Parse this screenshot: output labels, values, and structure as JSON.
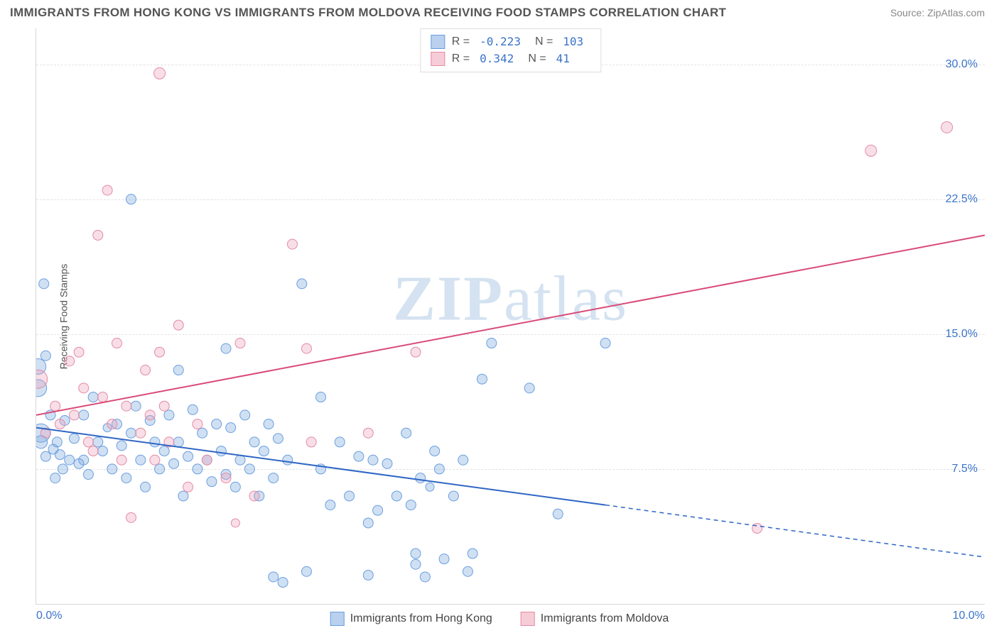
{
  "header": {
    "title": "IMMIGRANTS FROM HONG KONG VS IMMIGRANTS FROM MOLDOVA RECEIVING FOOD STAMPS CORRELATION CHART",
    "source_label": "Source:",
    "source_name": "ZipAtlas.com"
  },
  "watermark": {
    "zip": "ZIP",
    "atlas": "atlas"
  },
  "chart": {
    "type": "scatter",
    "ylabel": "Receiving Food Stamps",
    "xlim": [
      0,
      10
    ],
    "ylim": [
      0,
      32
    ],
    "xtick_labels": [
      "0.0%",
      "10.0%"
    ],
    "xtick_positions": [
      0,
      10
    ],
    "ytick_labels": [
      "7.5%",
      "15.0%",
      "22.5%",
      "30.0%"
    ],
    "ytick_positions": [
      7.5,
      15.0,
      22.5,
      30.0
    ],
    "xtick_color": "#3a73c9",
    "ytick_color": "#3a73c9",
    "background_color": "#ffffff",
    "grid_color": "#e3e3e3",
    "axis_color": "#d8d8d8"
  },
  "legend_top": {
    "rows": [
      {
        "swatch_fill": "#b9d0ee",
        "swatch_border": "#6a9fe0",
        "r_label": "R =",
        "r_value": "-0.223",
        "n_label": "N =",
        "n_value": "103"
      },
      {
        "swatch_fill": "#f6cdd7",
        "swatch_border": "#e48ba4",
        "r_label": "R =",
        "r_value": " 0.342",
        "n_label": "N =",
        "n_value": "  41"
      }
    ]
  },
  "legend_bottom": {
    "items": [
      {
        "swatch_fill": "#b9d0ee",
        "swatch_border": "#6a9fe0",
        "label": "Immigrants from Hong Kong"
      },
      {
        "swatch_fill": "#f6cdd7",
        "swatch_border": "#e48ba4",
        "label": "Immigrants from Moldova"
      }
    ]
  },
  "series": [
    {
      "name": "hong_kong",
      "color_fill": "rgba(120,165,220,0.35)",
      "color_stroke": "#6a9fe0",
      "trend": {
        "x1": 0,
        "y1": 9.8,
        "x2": 6.0,
        "y2": 5.5,
        "x2_ext": 10.0,
        "y2_ext": 2.6,
        "color": "#2f66c5",
        "width": 2,
        "dash_ext": "6 5"
      },
      "points": [
        [
          0.02,
          13.2,
          11
        ],
        [
          0.02,
          12.0,
          12
        ],
        [
          0.05,
          9.5,
          13
        ],
        [
          0.05,
          9.0,
          9
        ],
        [
          0.08,
          17.8,
          7
        ],
        [
          0.1,
          8.2,
          7
        ],
        [
          0.1,
          13.8,
          7
        ],
        [
          0.15,
          10.5,
          7
        ],
        [
          0.18,
          8.6,
          7
        ],
        [
          0.2,
          7.0,
          7
        ],
        [
          0.22,
          9.0,
          7
        ],
        [
          0.25,
          8.3,
          7
        ],
        [
          0.28,
          7.5,
          7
        ],
        [
          0.3,
          10.2,
          7
        ],
        [
          0.35,
          8.0,
          7
        ],
        [
          0.4,
          9.2,
          7
        ],
        [
          0.45,
          7.8,
          7
        ],
        [
          0.5,
          10.5,
          7
        ],
        [
          0.5,
          8.0,
          7
        ],
        [
          0.55,
          7.2,
          7
        ],
        [
          0.6,
          11.5,
          7
        ],
        [
          0.65,
          9.0,
          7
        ],
        [
          0.7,
          8.5,
          7
        ],
        [
          0.75,
          9.8,
          6
        ],
        [
          0.8,
          7.5,
          7
        ],
        [
          0.85,
          10.0,
          7
        ],
        [
          0.9,
          8.8,
          7
        ],
        [
          0.95,
          7.0,
          7
        ],
        [
          1.0,
          9.5,
          7
        ],
        [
          1.0,
          22.5,
          7
        ],
        [
          1.05,
          11.0,
          7
        ],
        [
          1.1,
          8.0,
          7
        ],
        [
          1.15,
          6.5,
          7
        ],
        [
          1.2,
          10.2,
          7
        ],
        [
          1.25,
          9.0,
          7
        ],
        [
          1.3,
          7.5,
          7
        ],
        [
          1.35,
          8.5,
          7
        ],
        [
          1.4,
          10.5,
          7
        ],
        [
          1.45,
          7.8,
          7
        ],
        [
          1.5,
          9.0,
          7
        ],
        [
          1.5,
          13.0,
          7
        ],
        [
          1.55,
          6.0,
          7
        ],
        [
          1.6,
          8.2,
          7
        ],
        [
          1.65,
          10.8,
          7
        ],
        [
          1.7,
          7.5,
          7
        ],
        [
          1.75,
          9.5,
          7
        ],
        [
          1.8,
          8.0,
          7
        ],
        [
          1.85,
          6.8,
          7
        ],
        [
          1.9,
          10.0,
          7
        ],
        [
          1.95,
          8.5,
          7
        ],
        [
          2.0,
          7.2,
          7
        ],
        [
          2.0,
          14.2,
          7
        ],
        [
          2.05,
          9.8,
          7
        ],
        [
          2.1,
          6.5,
          7
        ],
        [
          2.15,
          8.0,
          7
        ],
        [
          2.2,
          10.5,
          7
        ],
        [
          2.25,
          7.5,
          7
        ],
        [
          2.3,
          9.0,
          7
        ],
        [
          2.35,
          6.0,
          7
        ],
        [
          2.4,
          8.5,
          7
        ],
        [
          2.45,
          10.0,
          7
        ],
        [
          2.5,
          7.0,
          7
        ],
        [
          2.5,
          1.5,
          7
        ],
        [
          2.55,
          9.2,
          7
        ],
        [
          2.6,
          1.2,
          7
        ],
        [
          2.65,
          8.0,
          7
        ],
        [
          2.8,
          17.8,
          7
        ],
        [
          2.85,
          1.8,
          7
        ],
        [
          3.0,
          7.5,
          7
        ],
        [
          3.0,
          11.5,
          7
        ],
        [
          3.1,
          5.5,
          7
        ],
        [
          3.2,
          9.0,
          7
        ],
        [
          3.3,
          6.0,
          7
        ],
        [
          3.4,
          8.2,
          7
        ],
        [
          3.5,
          4.5,
          7
        ],
        [
          3.5,
          1.6,
          7
        ],
        [
          3.55,
          8.0,
          7
        ],
        [
          3.6,
          5.2,
          7
        ],
        [
          3.7,
          7.8,
          7
        ],
        [
          3.8,
          6.0,
          7
        ],
        [
          3.9,
          9.5,
          7
        ],
        [
          3.95,
          5.5,
          7
        ],
        [
          4.0,
          2.2,
          7
        ],
        [
          4.0,
          2.8,
          7
        ],
        [
          4.05,
          7.0,
          7
        ],
        [
          4.1,
          1.5,
          7
        ],
        [
          4.15,
          6.5,
          6
        ],
        [
          4.2,
          8.5,
          7
        ],
        [
          4.25,
          7.5,
          7
        ],
        [
          4.3,
          2.5,
          7
        ],
        [
          4.4,
          6.0,
          7
        ],
        [
          4.5,
          8.0,
          7
        ],
        [
          4.55,
          1.8,
          7
        ],
        [
          4.6,
          2.8,
          7
        ],
        [
          4.7,
          12.5,
          7
        ],
        [
          4.8,
          14.5,
          7
        ],
        [
          5.2,
          12.0,
          7
        ],
        [
          5.5,
          5.0,
          7
        ],
        [
          6.0,
          14.5,
          7
        ]
      ]
    },
    {
      "name": "moldova",
      "color_fill": "rgba(235,160,185,0.35)",
      "color_stroke": "#e48ba4",
      "trend": {
        "x1": 0,
        "y1": 10.5,
        "x2": 10.0,
        "y2": 20.5,
        "color": "#d94a77",
        "width": 2
      },
      "points": [
        [
          0.02,
          12.5,
          13
        ],
        [
          0.1,
          9.5,
          7
        ],
        [
          0.2,
          11.0,
          7
        ],
        [
          0.25,
          10.0,
          7
        ],
        [
          0.35,
          13.5,
          7
        ],
        [
          0.4,
          10.5,
          7
        ],
        [
          0.45,
          14.0,
          7
        ],
        [
          0.5,
          12.0,
          7
        ],
        [
          0.55,
          9.0,
          7
        ],
        [
          0.6,
          8.5,
          7
        ],
        [
          0.65,
          20.5,
          7
        ],
        [
          0.7,
          11.5,
          7
        ],
        [
          0.75,
          23.0,
          7
        ],
        [
          0.8,
          10.0,
          7
        ],
        [
          0.85,
          14.5,
          7
        ],
        [
          0.9,
          8.0,
          7
        ],
        [
          0.95,
          11.0,
          7
        ],
        [
          1.0,
          4.8,
          7
        ],
        [
          1.1,
          9.5,
          7
        ],
        [
          1.15,
          13.0,
          7
        ],
        [
          1.2,
          10.5,
          7
        ],
        [
          1.25,
          8.0,
          7
        ],
        [
          1.3,
          14.0,
          7
        ],
        [
          1.35,
          11.0,
          7
        ],
        [
          1.3,
          29.5,
          8
        ],
        [
          1.4,
          9.0,
          7
        ],
        [
          1.5,
          15.5,
          7
        ],
        [
          1.6,
          6.5,
          7
        ],
        [
          1.7,
          10.0,
          7
        ],
        [
          1.8,
          8.0,
          7
        ],
        [
          2.0,
          7.0,
          7
        ],
        [
          2.1,
          4.5,
          6
        ],
        [
          2.15,
          14.5,
          7
        ],
        [
          2.3,
          6.0,
          7
        ],
        [
          2.7,
          20.0,
          7
        ],
        [
          2.85,
          14.2,
          7
        ],
        [
          2.9,
          9.0,
          7
        ],
        [
          3.5,
          9.5,
          7
        ],
        [
          4.0,
          14.0,
          7
        ],
        [
          7.6,
          4.2,
          7
        ],
        [
          8.8,
          25.2,
          8
        ],
        [
          9.6,
          26.5,
          8
        ]
      ]
    }
  ]
}
